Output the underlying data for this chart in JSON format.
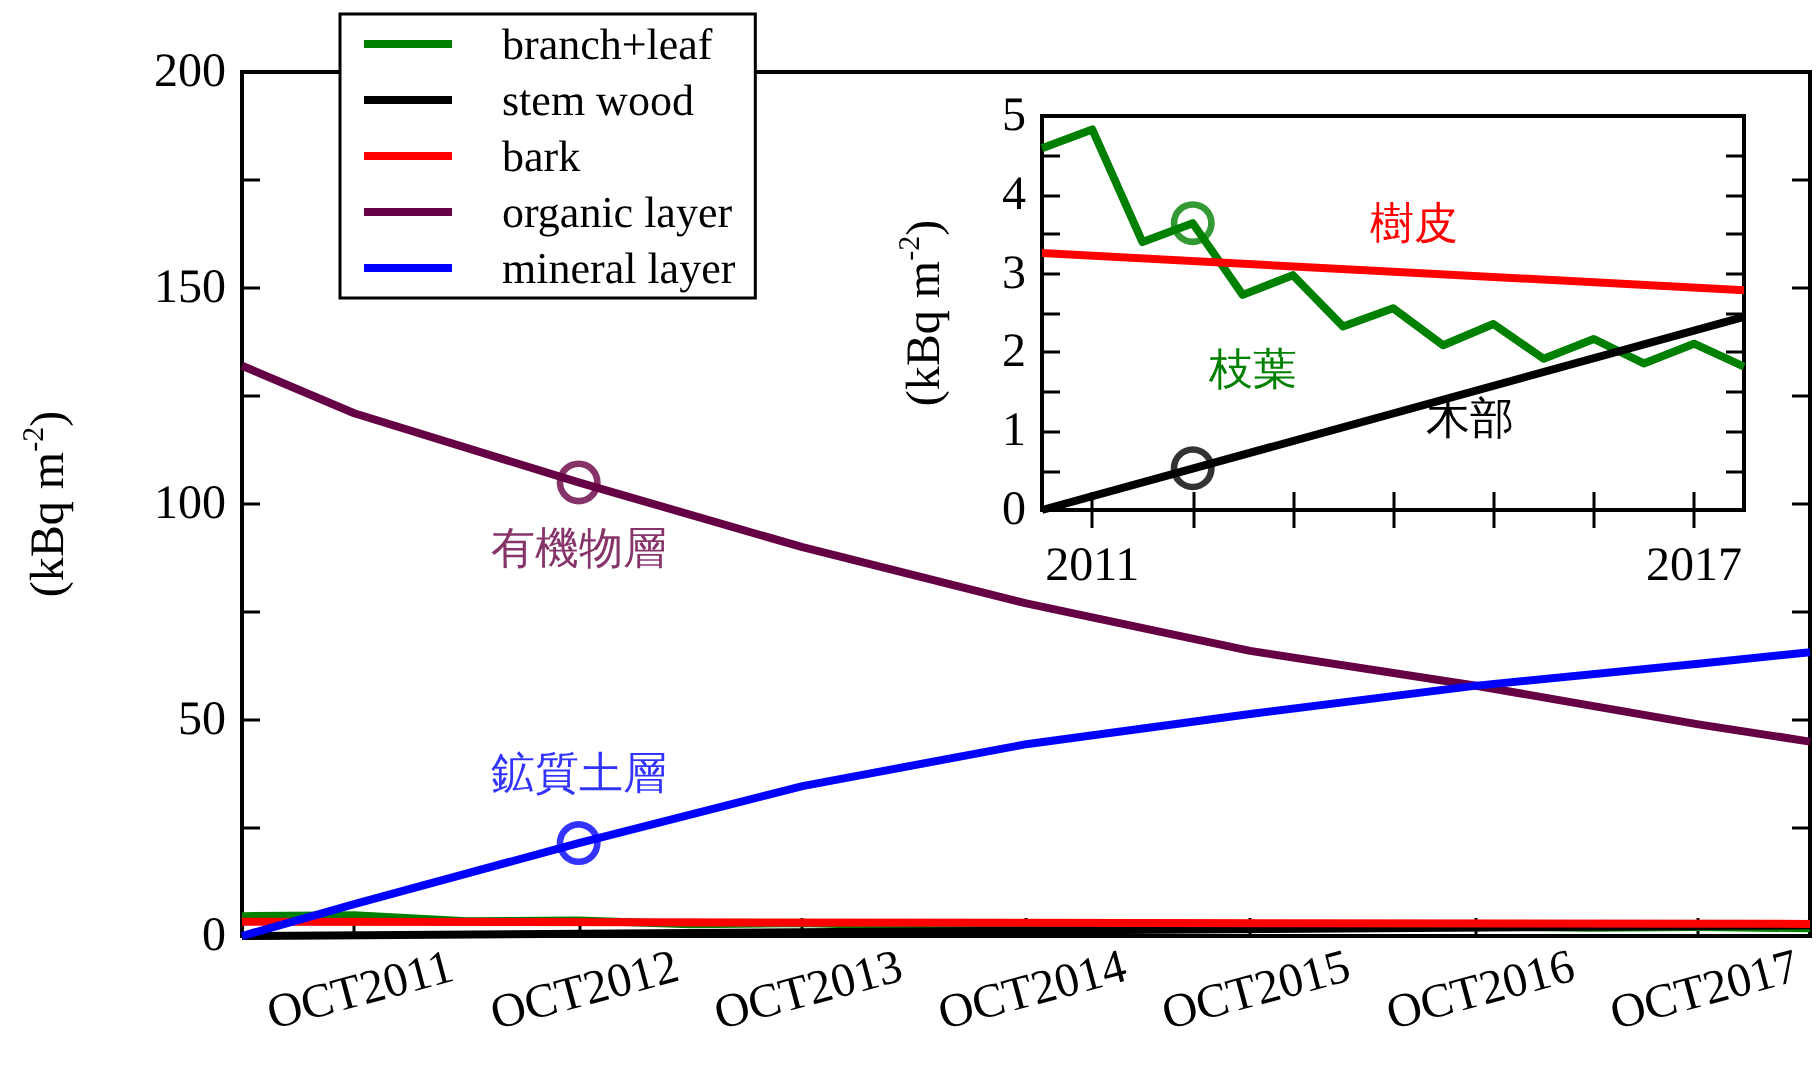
{
  "chart_data": [
    {
      "type": "line",
      "ylabel": "(kBq m$^{-2}$)",
      "xlim": [
        "2011-04",
        "2018-04"
      ],
      "xticks": [
        {
          "value": "2011-10",
          "label": "OCT2011"
        },
        {
          "value": "2012-10",
          "label": "OCT2012"
        },
        {
          "value": "2013-10",
          "label": "OCT2013"
        },
        {
          "value": "2014-10",
          "label": "OCT2014"
        },
        {
          "value": "2015-10",
          "label": "OCT2015"
        },
        {
          "value": "2016-10",
          "label": "OCT2016"
        },
        {
          "value": "2017-10",
          "label": "OCT2017"
        }
      ],
      "ylim": [
        0,
        200
      ],
      "yticks": [
        0,
        {
          "value": 25,
          "label": null
        },
        50,
        {
          "value": 75,
          "label": null
        },
        100,
        {
          "value": 125,
          "label": null
        },
        150,
        {
          "value": 175,
          "label": null
        },
        200
      ],
      "grid": false,
      "legend": "top left",
      "series": [
        {
          "name": "branch+leaf",
          "color": "#008000",
          "x": [
            "2011-04",
            "2011-10",
            "2012-04",
            "2012-10",
            "2013-04",
            "2013-10",
            "2014-04",
            "2014-10",
            "2015-04",
            "2015-10",
            "2016-04",
            "2016-10",
            "2017-04",
            "2017-10",
            "2018-04"
          ],
          "values": [
            4.6,
            4.8,
            3.4,
            3.6,
            2.7,
            3,
            2.3,
            2.6,
            2.1,
            2.4,
            1.9,
            2.2,
            1.9,
            2.1,
            1.8
          ]
        },
        {
          "name": "stem wood",
          "color": "#000000",
          "x": [
            "2011-04",
            "2018-04"
          ],
          "values": [
            0,
            2.5
          ]
        },
        {
          "name": "bark",
          "color": "#ff0000",
          "x": [
            "2011-04",
            "2018-04"
          ],
          "values": [
            3.3,
            2.8
          ]
        },
        {
          "name": "organic layer",
          "color": "#660044",
          "x": [
            "2011-04",
            "2011-10",
            "2012-10",
            "2013-10",
            "2014-10",
            "2015-10",
            "2016-10",
            "2017-10",
            "2018-04"
          ],
          "values": [
            132,
            121,
            105,
            90,
            77,
            66,
            58,
            49,
            45
          ]
        },
        {
          "name": "mineral layer",
          "color": "#0000ff",
          "x": [
            "2011-04",
            "2011-10",
            "2012-10",
            "2013-10",
            "2014-10",
            "2015-10",
            "2016-10",
            "2017-10",
            "2018-04"
          ],
          "values": [
            0,
            7.4,
            21.5,
            34.7,
            44.4,
            51.4,
            57.9,
            63,
            65.7
          ]
        },
        {
          "type": "scatter",
          "name": "有機物層",
          "marker": "circle",
          "color": "#660044",
          "x": [
            "2012-10"
          ],
          "values": [
            105
          ]
        },
        {
          "type": "scatter",
          "name": "鉱質土層",
          "marker": "circle",
          "color": "#0000ff",
          "x": [
            "2012-10"
          ],
          "values": [
            21.5
          ]
        }
      ]
    },
    {
      "type": "line",
      "ylabel": "(kBq m$^{-2}$)",
      "xlim": [
        "2011-04",
        "2018-04"
      ],
      "xticks": [
        {
          "value": "2011-10",
          "label": "2011"
        },
        {
          "value": "2012-10",
          "label": null
        },
        {
          "value": "2013-10",
          "label": null
        },
        {
          "value": "2014-10",
          "label": null
        },
        {
          "value": "2015-10",
          "label": null
        },
        {
          "value": "2016-10",
          "label": null
        },
        {
          "value": "2017-10",
          "label": "2017"
        }
      ],
      "ylim": [
        0,
        5
      ],
      "yticks": [
        0,
        {
          "value": 0.5,
          "label": null
        },
        1,
        {
          "value": 1.5,
          "label": null
        },
        2,
        {
          "value": 2.5,
          "label": null
        },
        3,
        {
          "value": 3.5,
          "label": null
        },
        4,
        {
          "value": 4.5,
          "label": null
        },
        5
      ],
      "grid": false,
      "series": [
        {
          "name": "枝葉",
          "color": "#008000",
          "x": [
            "2011-04",
            "2011-10",
            "2012-04",
            "2012-10",
            "2013-04",
            "2013-10",
            "2014-04",
            "2014-10",
            "2015-04",
            "2015-10",
            "2016-04",
            "2016-10",
            "2017-04",
            "2017-10",
            "2018-04"
          ],
          "values": [
            4.59,
            4.83,
            3.4,
            3.64,
            2.73,
            2.98,
            2.33,
            2.56,
            2.09,
            2.36,
            1.92,
            2.17,
            1.86,
            2.11,
            1.82
          ]
        },
        {
          "name": "樹皮",
          "color": "#ff0000",
          "x": [
            "2011-04",
            "2018-04"
          ],
          "values": [
            3.26,
            2.79
          ]
        },
        {
          "name": "木部",
          "color": "#000000",
          "x": [
            "2011-04",
            "2018-04"
          ],
          "values": [
            0,
            2.45
          ]
        },
        {
          "type": "scatter",
          "marker": "circle",
          "color": "#008000",
          "x": [
            "2012-10"
          ],
          "values": [
            3.64
          ]
        },
        {
          "type": "scatter",
          "marker": "circle",
          "color": "#000000",
          "x": [
            "2012-10"
          ],
          "values": [
            0.53
          ]
        }
      ]
    }
  ]
}
